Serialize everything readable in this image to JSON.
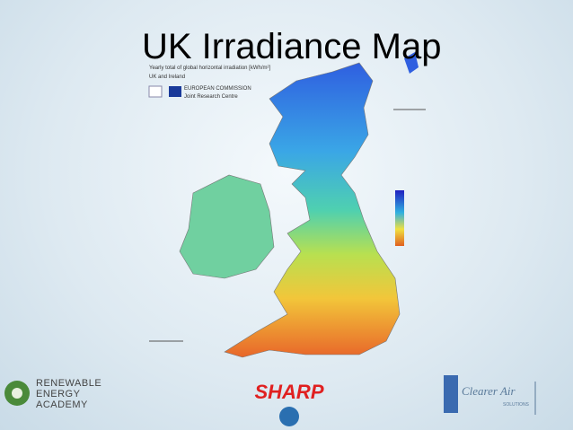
{
  "header": {
    "title": "UK Irradiance Map"
  },
  "map": {
    "caption": "Yearly total of global horizontal irradiation [kWh/m²]",
    "region": "UK and Ireland",
    "agency": "EUROPEAN COMMISSION",
    "centre": "Joint Research Centre"
  },
  "logos": {
    "academy": [
      "RENEWABLE",
      "ENERGY",
      "ACADEMY"
    ],
    "sponsor": "SHARP",
    "partner": "Clearer Air",
    "partner_tagline": "SOLUTIONS"
  }
}
